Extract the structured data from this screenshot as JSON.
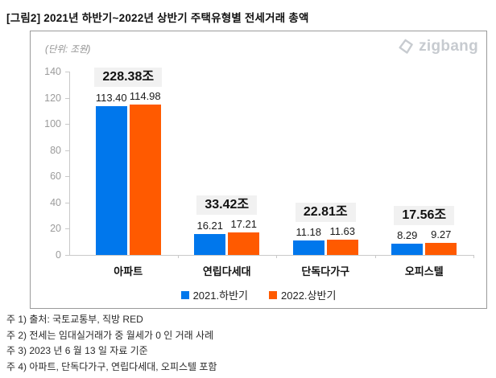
{
  "title": "[그림2] 2021년 하반기~2022년 상반기 주택유형별 전세거래 총액",
  "logo": {
    "text": "zigbang",
    "icon": "zigbang-loop-icon",
    "color": "#C7CBD0"
  },
  "chart_data": {
    "type": "bar",
    "title": "2021년 하반기~2022년 상반기 주택유형별 전세거래 총액",
    "unit_label": "(단위: 조원)",
    "categories": [
      "아파트",
      "연립다세대",
      "단독다가구",
      "오피스텔"
    ],
    "series": [
      {
        "name": "2021.하반기",
        "color": "#0077EC",
        "values": [
          113.4,
          16.21,
          11.18,
          8.29
        ]
      },
      {
        "name": "2022.상반기",
        "color": "#FF5A00",
        "values": [
          114.98,
          17.21,
          11.63,
          9.27
        ]
      }
    ],
    "totals": [
      "228.38조",
      "33.42조",
      "22.81조",
      "17.56조"
    ],
    "ylim": [
      0,
      140
    ],
    "yticks": [
      0,
      20,
      40,
      60,
      80,
      100,
      120,
      140
    ],
    "grid": false,
    "legend_position": "bottom",
    "total_bg": "#F1F1F1",
    "axis_color": "#C9C9C9",
    "tick_label_color": "#9B9B9B"
  },
  "footnotes": [
    "주 1) 출처: 국토교통부, 직방 RED",
    "주 2) 전세는 임대실거래가 중 월세가 0 인 거래 사례",
    "주 3) 2023 년 6 월 13 일 자료 기준",
    "주 4) 아파트, 단독다가구, 연립다세대, 오피스텔 포함"
  ]
}
